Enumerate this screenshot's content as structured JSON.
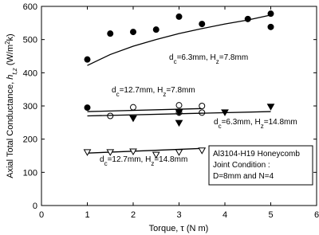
{
  "chart_data": {
    "type": "scatter",
    "x_label": "Torque, τ (N m)",
    "y_label": [
      {
        "text": "Axial Total Conductance, "
      },
      {
        "text": "h",
        "script": "italic"
      },
      {
        "text": "t,z",
        "script": "sub"
      },
      {
        "text": " (W/m"
      },
      {
        "text": "2",
        "script": "super"
      },
      {
        "text": "k)"
      }
    ],
    "xlim": [
      0,
      6
    ],
    "xticks": [
      0,
      1,
      2,
      3,
      4,
      5,
      6
    ],
    "ylim": [
      0,
      600
    ],
    "yticks": [
      0,
      100,
      200,
      300,
      400,
      500,
      600
    ],
    "color": "#000000",
    "series": [
      {
        "marker": "circle",
        "filled": true,
        "x": [
          1,
          1,
          1.5,
          2,
          2.5,
          3,
          3.5,
          4.5,
          5,
          5
        ],
        "values": [
          440,
          295,
          518,
          523,
          530,
          569,
          547,
          562,
          578,
          538
        ],
        "fit": {
          "x": [
            1,
            1.5,
            2,
            2.5,
            3,
            3.5,
            4,
            4.5,
            5
          ],
          "values": [
            422,
            455,
            480,
            500,
            518,
            533,
            547,
            559,
            574
          ]
        },
        "label": [
          "d",
          "c",
          "=6.3mm, H",
          "z",
          "=7.8mm"
        ]
      },
      {
        "marker": "circle",
        "filled": false,
        "x": [
          1.5,
          2,
          3,
          3,
          3.5,
          3.5
        ],
        "values": [
          270,
          296,
          302,
          280,
          300,
          280
        ],
        "fit": {
          "x": [
            1,
            3.5
          ],
          "values": [
            283,
            292
          ]
        },
        "label": [
          "d",
          "c",
          "=12.7mm, H",
          "z",
          "=7.8mm"
        ]
      },
      {
        "marker": "triangle-down",
        "filled": true,
        "x": [
          2,
          3,
          3,
          4,
          5
        ],
        "values": [
          262,
          280,
          248,
          280,
          297
        ],
        "fit": {
          "x": [
            1,
            5
          ],
          "values": [
            270,
            283
          ]
        },
        "label": [
          "d",
          "c",
          "=6.3mm, H",
          "z",
          "=14.8mm"
        ]
      },
      {
        "marker": "triangle-down",
        "filled": false,
        "x": [
          1,
          1.5,
          2,
          2.5,
          3,
          3.5
        ],
        "values": [
          160,
          160,
          162,
          152,
          160,
          165
        ],
        "fit": {
          "x": [
            1,
            3.5
          ],
          "values": [
            158,
            172
          ]
        },
        "label": [
          "d",
          "c",
          "=12.7mm, H",
          "z",
          "=14.8mm"
        ]
      }
    ],
    "note": [
      "Al3104-H19 Honeycomb",
      "Joint Condition :",
      "D=8mm and N=4"
    ]
  }
}
